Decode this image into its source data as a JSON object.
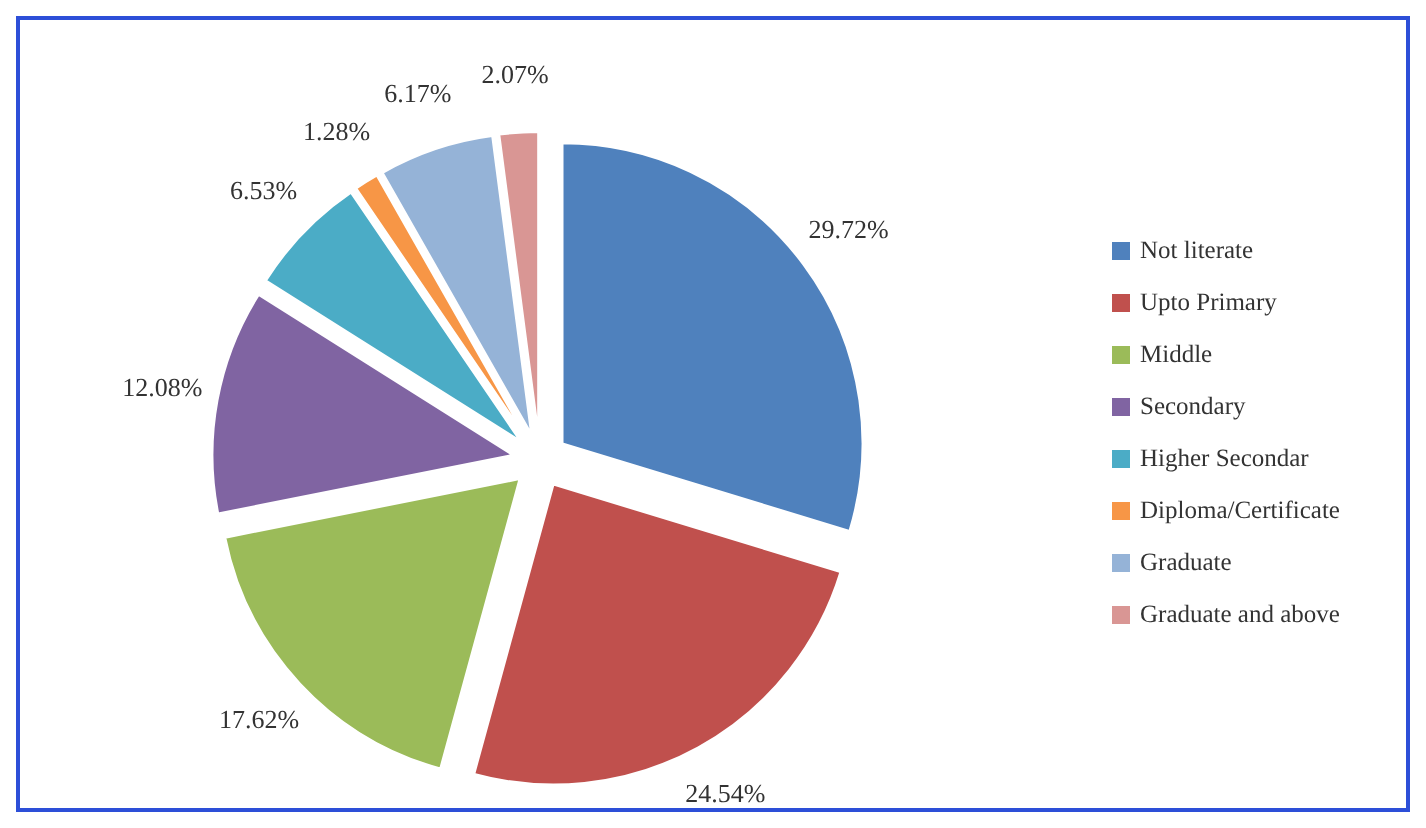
{
  "chart_data": {
    "type": "pie",
    "categories": [
      "Not literate",
      "Upto Primary",
      "Middle",
      "Secondary",
      "Higher Secondar",
      "Diploma/Certificate",
      "Graduate",
      "Graduate and above"
    ],
    "values": [
      29.72,
      24.54,
      17.62,
      12.08,
      6.53,
      1.28,
      6.17,
      2.07
    ],
    "colors": [
      "#4f81bd",
      "#c0504d",
      "#9bbb59",
      "#8064a2",
      "#4bacc6",
      "#f79646",
      "#95b3d7",
      "#d99694"
    ],
    "value_labels": [
      "29.72%",
      "24.54%",
      "17.62%",
      "12.08%",
      "6.53%",
      "1.28%",
      "6.17%",
      "2.07%"
    ],
    "legend": "right"
  }
}
